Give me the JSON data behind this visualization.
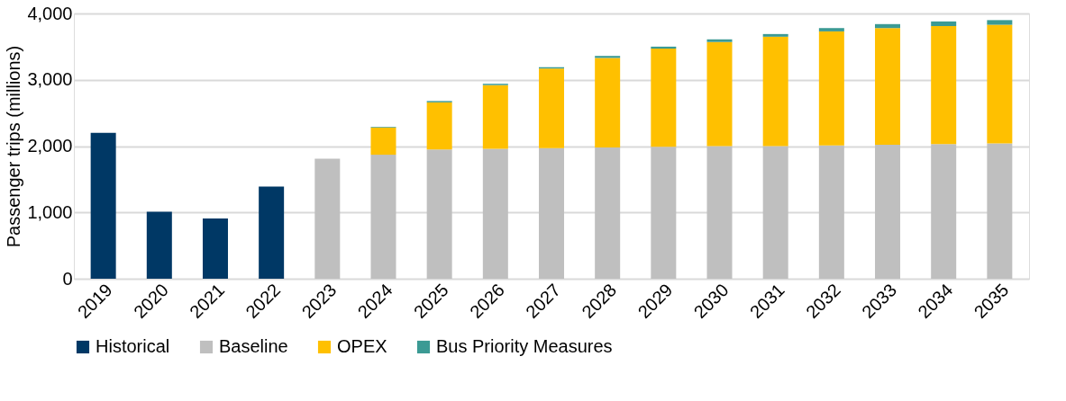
{
  "chart_data": {
    "type": "bar",
    "stacked": true,
    "ylabel": "Passenger trips (millions)",
    "categories": [
      "2019",
      "2020",
      "2021",
      "2022",
      "2023",
      "2024",
      "2025",
      "2026",
      "2027",
      "2028",
      "2029",
      "2030",
      "2031",
      "2032",
      "2033",
      "2034",
      "2035"
    ],
    "series": [
      {
        "name": "Historical",
        "color": "#003865",
        "values": [
          2200,
          1010,
          910,
          1390,
          null,
          null,
          null,
          null,
          null,
          null,
          null,
          null,
          null,
          null,
          null,
          null,
          null
        ]
      },
      {
        "name": "Baseline",
        "color": "#bfbfbf",
        "values": [
          null,
          null,
          null,
          null,
          1810,
          1870,
          1950,
          1960,
          1970,
          1980,
          1990,
          2000,
          2000,
          2010,
          2020,
          2030,
          2040
        ]
      },
      {
        "name": "OPEX",
        "color": "#ffc000",
        "values": [
          null,
          null,
          null,
          null,
          null,
          410,
          710,
          960,
          1200,
          1350,
          1480,
          1570,
          1650,
          1720,
          1760,
          1780,
          1790
        ]
      },
      {
        "name": "Bus Priority Measures",
        "color": "#3b9a94",
        "values": [
          null,
          null,
          null,
          null,
          null,
          10,
          20,
          20,
          20,
          30,
          30,
          40,
          40,
          50,
          60,
          70,
          70
        ]
      }
    ],
    "ylim": [
      0,
      4000
    ],
    "yticks": [
      {
        "value": 0,
        "label": "0"
      },
      {
        "value": 1000,
        "label": "1,000"
      },
      {
        "value": 2000,
        "label": "2,000"
      },
      {
        "value": 3000,
        "label": "3,000"
      },
      {
        "value": 4000,
        "label": "4,000"
      }
    ],
    "grid": "y",
    "legend": "bottom"
  }
}
